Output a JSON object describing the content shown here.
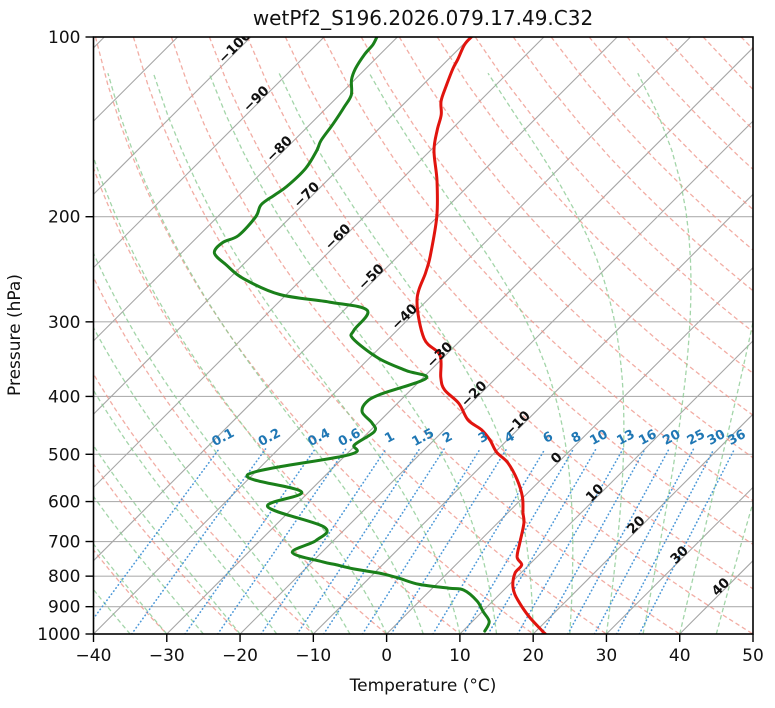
{
  "title": "wetPf2_S196.2026.079.17.49.C32",
  "chart_data": {
    "type": "line",
    "subtype": "skewT-logP",
    "title": "wetPf2_S196.2026.079.17.49.C32",
    "xlabel": "Temperature (°C)",
    "ylabel": "Pressure (hPa)",
    "xlim": [
      -40,
      50
    ],
    "pressure_lim": [
      1000,
      100
    ],
    "x_ticks": [
      -40,
      -30,
      -20,
      -10,
      0,
      10,
      20,
      30,
      40,
      50
    ],
    "pressure_ticks": [
      100,
      200,
      300,
      400,
      500,
      600,
      700,
      800,
      900,
      1000
    ],
    "grid": true,
    "skew_degrees": 45,
    "isotherm_step_c": 10,
    "isotherm_labels": [
      -100,
      -90,
      -80,
      -70,
      -60,
      -50,
      -40,
      -30,
      -20,
      -10,
      0,
      10,
      20,
      30,
      40
    ],
    "isotherm_label_colors": {
      "negative": "#1f77b4",
      "zero": "#808080",
      "positive": "#d62728"
    },
    "dry_adiabats_theta_c": {
      "from": -40,
      "to": 200,
      "step": 10
    },
    "moist_adiabats_t0_c": {
      "from": -40,
      "to": 45,
      "step": 5
    },
    "mixing_ratio_lines_g_kg": [
      0.1,
      0.2,
      0.4,
      0.6,
      1,
      1.5,
      2,
      3,
      4,
      6,
      8,
      10,
      13,
      16,
      20,
      25,
      30,
      36
    ],
    "line_colors": {
      "isotherms": "#a6a6a6",
      "pressure_grid": "#b0b0b0",
      "dry_adiabats": "#ee9286",
      "moist_adiabats": "#8cca93",
      "mixing_ratio": "#4292d6",
      "temperature": "#e1140e",
      "dewpoint": "#1a801a"
    },
    "series": [
      {
        "name": "temperature",
        "units": {
          "t": "degC",
          "p": "hPa"
        },
        "points_t_p": [
          [
            21.6,
            999
          ],
          [
            20.8,
            988
          ],
          [
            17.4,
            940
          ],
          [
            14.8,
            901
          ],
          [
            12.2,
            860
          ],
          [
            10.5,
            827
          ],
          [
            9.2,
            790
          ],
          [
            9.0,
            766
          ],
          [
            7.3,
            743
          ],
          [
            5.6,
            700
          ],
          [
            3.6,
            652
          ],
          [
            2.1,
            627
          ],
          [
            -0.2,
            589
          ],
          [
            -3.2,
            552
          ],
          [
            -6.9,
            516
          ],
          [
            -9.8,
            496
          ],
          [
            -12.4,
            473
          ],
          [
            -14.9,
            455
          ],
          [
            -18.1,
            438
          ],
          [
            -21.6,
            411
          ],
          [
            -25.4,
            390
          ],
          [
            -27.6,
            372
          ],
          [
            -30.8,
            341
          ],
          [
            -35.2,
            320
          ],
          [
            -41.4,
            276
          ],
          [
            -44.0,
            248
          ],
          [
            -45.6,
            233
          ],
          [
            -50.1,
            200
          ],
          [
            -55.0,
            174
          ],
          [
            -59.5,
            155
          ],
          [
            -61.9,
            143
          ],
          [
            -63.4,
            135
          ],
          [
            -65.3,
            128
          ],
          [
            -66.8,
            120
          ],
          [
            -68.1,
            113
          ],
          [
            -68.7,
            109
          ],
          [
            -69.8,
            103
          ],
          [
            -69.9,
            100
          ]
        ]
      },
      {
        "name": "dewpoint",
        "units": {
          "t": "degC",
          "p": "hPa"
        },
        "points_t_p": [
          [
            13.0,
            989
          ],
          [
            12.3,
            953
          ],
          [
            10.1,
            917
          ],
          [
            7.8,
            880
          ],
          [
            4.5,
            844
          ],
          [
            2.3,
            838
          ],
          [
            -2.3,
            826
          ],
          [
            -6.0,
            806
          ],
          [
            -9.0,
            792
          ],
          [
            -13.4,
            778
          ],
          [
            -16.5,
            765
          ],
          [
            -18.6,
            757
          ],
          [
            -24.0,
            730
          ],
          [
            -22.4,
            697
          ],
          [
            -23.1,
            662
          ],
          [
            -33.6,
            612
          ],
          [
            -31.0,
            578
          ],
          [
            -40.7,
            541
          ],
          [
            -29.6,
            501
          ],
          [
            -30.2,
            482
          ],
          [
            -29.3,
            458
          ],
          [
            -30.8,
            443
          ],
          [
            -33.6,
            425
          ],
          [
            -34.4,
            409
          ],
          [
            -33.6,
            397
          ],
          [
            -29.5,
            373
          ],
          [
            -33.3,
            362
          ],
          [
            -38.8,
            345
          ],
          [
            -44.9,
            320
          ],
          [
            -45.9,
            310
          ],
          [
            -46.8,
            287
          ],
          [
            -53.1,
            278
          ],
          [
            -60.9,
            270
          ],
          [
            -68.0,
            254
          ],
          [
            -72.2,
            241
          ],
          [
            -75.5,
            230
          ],
          [
            -75.8,
            221
          ],
          [
            -74.6,
            215
          ],
          [
            -74.8,
            200
          ],
          [
            -75.7,
            191
          ],
          [
            -75.2,
            184
          ],
          [
            -74.7,
            178
          ],
          [
            -74.6,
            166
          ],
          [
            -75.5,
            155
          ],
          [
            -76.3,
            149
          ],
          [
            -76.9,
            140
          ],
          [
            -77.7,
            131
          ],
          [
            -78.4,
            125
          ],
          [
            -80.4,
            118
          ],
          [
            -81.4,
            113
          ],
          [
            -82.1,
            107
          ],
          [
            -82.3,
            103
          ],
          [
            -82.8,
            100
          ]
        ]
      }
    ]
  }
}
